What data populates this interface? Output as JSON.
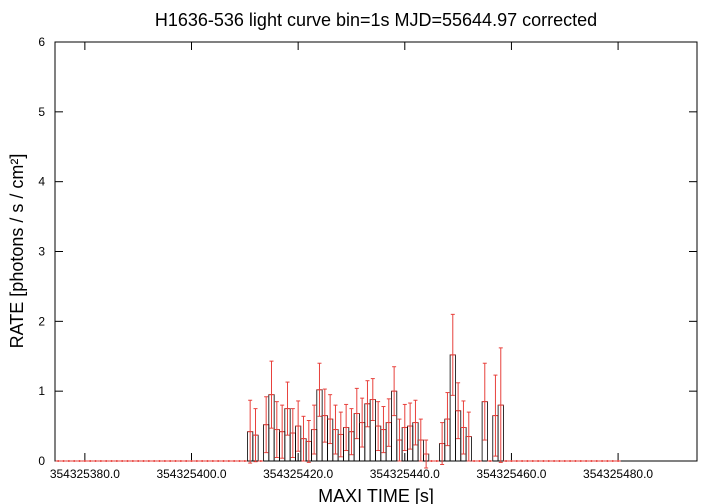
{
  "chart_data": {
    "type": "step",
    "title": "H1636-536 light curve bin=1s MJD=55644.97 corrected",
    "xlabel": "MAXI TIME [s]",
    "ylabel": "RATE [photons / s / cm²]",
    "color": "#000000",
    "error_color": "#e8413c",
    "xlim": [
      354325374.4,
      354325494.8
    ],
    "ylim": [
      0,
      6
    ],
    "xticks": [
      {
        "value": 354325380,
        "label": "354325380.0"
      },
      {
        "value": 354325400,
        "label": "354325400.0"
      },
      {
        "value": 354325420,
        "label": "354325420.0"
      },
      {
        "value": 354325440,
        "label": "354325440.0"
      },
      {
        "value": 354325460,
        "label": "354325460.0"
      },
      {
        "value": 354325480,
        "label": "354325480.0"
      }
    ],
    "yticks": [
      0,
      1,
      2,
      3,
      4,
      5,
      6
    ],
    "x": [
      354325375,
      354325376,
      354325377,
      354325378,
      354325379,
      354325380,
      354325381,
      354325382,
      354325383,
      354325384,
      354325385,
      354325386,
      354325387,
      354325388,
      354325389,
      354325390,
      354325391,
      354325392,
      354325393,
      354325394,
      354325395,
      354325396,
      354325397,
      354325398,
      354325399,
      354325400,
      354325401,
      354325402,
      354325403,
      354325404,
      354325405,
      354325406,
      354325407,
      354325408,
      354325409,
      354325410,
      354325411,
      354325412,
      354325413,
      354325414,
      354325415,
      354325416,
      354325417,
      354325418,
      354325419,
      354325420,
      354325421,
      354325422,
      354325423,
      354325424,
      354325425,
      354325426,
      354325427,
      354325428,
      354325429,
      354325430,
      354325431,
      354325432,
      354325433,
      354325434,
      354325435,
      354325436,
      354325437,
      354325438,
      354325439,
      354325440,
      354325441,
      354325442,
      354325443,
      354325444,
      354325445,
      354325446,
      354325447,
      354325448,
      354325449,
      354325450,
      354325451,
      354325452,
      354325453,
      354325454,
      354325455,
      354325456,
      354325457,
      354325458,
      354325459,
      354325460,
      354325461,
      354325462,
      354325463,
      354325464,
      354325465,
      354325466,
      354325467,
      354325468,
      354325469,
      354325470,
      354325471,
      354325472,
      354325473,
      354325474,
      354325475,
      354325476,
      354325477,
      354325478,
      354325479,
      354325480
    ],
    "values": [
      0,
      0,
      0,
      0,
      0,
      0,
      0,
      0,
      0,
      0,
      0,
      0,
      0,
      0,
      0,
      0,
      0,
      0,
      0,
      0,
      0,
      0,
      0,
      0,
      0,
      0,
      0,
      0,
      0,
      0,
      0,
      0,
      0,
      0,
      0,
      0,
      0.42,
      0.37,
      0,
      0.52,
      0.95,
      0.45,
      0.42,
      0.75,
      0.4,
      0.5,
      0.32,
      0.28,
      0.45,
      1.02,
      0.65,
      0.6,
      0.45,
      0.38,
      0.48,
      0.42,
      0.68,
      0.55,
      0.82,
      0.88,
      0.5,
      0.45,
      0.55,
      1.0,
      0.3,
      0.48,
      0.5,
      0.55,
      0.3,
      0.1,
      0,
      0,
      0.25,
      0.6,
      1.52,
      0.72,
      0.48,
      0.35,
      0,
      0,
      0.85,
      0,
      0.65,
      0.8,
      0,
      0,
      0,
      0,
      0,
      0,
      0,
      0,
      0,
      0,
      0,
      0,
      0,
      0,
      0,
      0,
      0,
      0,
      0,
      0,
      0,
      0
    ],
    "errors": [
      0,
      0,
      0,
      0,
      0,
      0,
      0,
      0,
      0,
      0,
      0,
      0,
      0,
      0,
      0,
      0,
      0,
      0,
      0,
      0,
      0,
      0,
      0,
      0,
      0,
      0,
      0,
      0,
      0,
      0,
      0,
      0,
      0,
      0,
      0,
      0,
      0.45,
      0.38,
      0,
      0.4,
      0.48,
      0.4,
      0.38,
      0.38,
      0.35,
      0.36,
      0.32,
      0.3,
      0.35,
      0.38,
      0.38,
      0.35,
      0.35,
      0.32,
      0.33,
      0.33,
      0.36,
      0.35,
      0.33,
      0.3,
      0.35,
      0.33,
      0.34,
      0.35,
      0.3,
      0.33,
      0.33,
      0.32,
      0.3,
      0.2,
      0,
      0,
      0.3,
      0.38,
      0.58,
      0.4,
      0.38,
      0.35,
      0,
      0,
      0.55,
      0,
      0.58,
      0.82,
      0,
      0,
      0,
      0,
      0,
      0,
      0,
      0,
      0,
      0,
      0,
      0,
      0,
      0,
      0,
      0,
      0,
      0,
      0,
      0,
      0,
      0
    ]
  }
}
